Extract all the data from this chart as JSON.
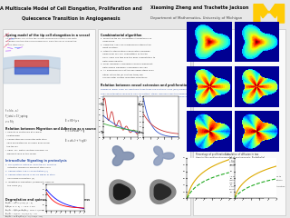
{
  "title_left_line1": "A Multiscale Model of Cell Elongation, Proliferation and",
  "title_left_line2": "Quiescence Transition in Angiogenesis",
  "title_right_line1": "Xiaoming Zheng and Trachette Jackson",
  "title_right_line2": "Department of Mathematics, University of Michigan",
  "michigan_blue": "#00274C",
  "michigan_maize": "#FFCB05",
  "poster_bg": "#e8e8e8",
  "col_bg": "#f5f5f5",
  "header_bg": "#f0f0f0",
  "text_dark": "#111111",
  "text_mid": "#444444",
  "text_light": "#777777",
  "blue_link": "#3355aa"
}
